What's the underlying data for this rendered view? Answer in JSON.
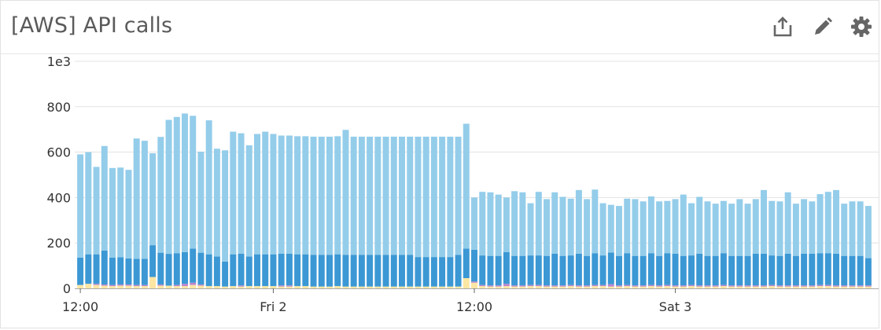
{
  "widget": {
    "title": "[AWS] API calls",
    "actions": [
      {
        "name": "export-icon",
        "label": "Export"
      },
      {
        "name": "edit-icon",
        "label": "Edit"
      },
      {
        "name": "settings-icon",
        "label": "Settings"
      }
    ]
  },
  "colors": {
    "series_light_blue": "#94cdea",
    "series_mid_blue": "#3b98d4",
    "series_yellow": "#fbe6a3",
    "series_purple": "#bd84cf",
    "gridline": "#e3e3e3",
    "axis": "#aaaaaa"
  },
  "chart_data": {
    "type": "bar",
    "stacked": true,
    "y_tick_labels": [
      "0",
      "200",
      "400",
      "600",
      "800",
      "1e3"
    ],
    "ylim": [
      0,
      1000
    ],
    "x_tick_labels": [
      {
        "text": "12:00",
        "bar_index": 0
      },
      {
        "text": "Fri 2",
        "bar_index": 24
      },
      {
        "text": "12:00",
        "bar_index": 49
      },
      {
        "text": "Sat 3",
        "bar_index": 74
      }
    ],
    "grid": true,
    "bar_count": 99,
    "series": [
      {
        "color": "#fbe6a3",
        "values": [
          15,
          20,
          15,
          12,
          10,
          12,
          12,
          10,
          10,
          50,
          12,
          12,
          10,
          10,
          15,
          12,
          10,
          10,
          8,
          10,
          8,
          10,
          10,
          10,
          10,
          8,
          8,
          10,
          10,
          8,
          8,
          8,
          10,
          8,
          8,
          8,
          8,
          8,
          8,
          8,
          8,
          8,
          8,
          8,
          8,
          8,
          8,
          8,
          45,
          25,
          10,
          8,
          8,
          10,
          8,
          8,
          10,
          10,
          8,
          8,
          8,
          10,
          8,
          8,
          10,
          10,
          8,
          8,
          10,
          8,
          8,
          10,
          8,
          10,
          8,
          8,
          10,
          8,
          8,
          8,
          10,
          8,
          8,
          8,
          8,
          8,
          10,
          8,
          8,
          8,
          8,
          8,
          10,
          10,
          8,
          8,
          8,
          8,
          8
        ]
      },
      {
        "color": "#bd84cf",
        "values": [
          0,
          0,
          5,
          5,
          5,
          5,
          5,
          5,
          5,
          0,
          5,
          0,
          5,
          10,
          10,
          5,
          0,
          0,
          0,
          0,
          5,
          0,
          0,
          0,
          0,
          5,
          5,
          0,
          0,
          0,
          0,
          0,
          0,
          0,
          0,
          0,
          0,
          0,
          0,
          0,
          0,
          0,
          0,
          0,
          0,
          0,
          0,
          0,
          0,
          5,
          5,
          5,
          5,
          10,
          5,
          5,
          5,
          5,
          5,
          5,
          5,
          5,
          5,
          5,
          5,
          5,
          10,
          5,
          5,
          5,
          5,
          5,
          5,
          5,
          5,
          5,
          5,
          5,
          5,
          5,
          5,
          5,
          5,
          5,
          5,
          5,
          5,
          5,
          5,
          5,
          5,
          5,
          5,
          5,
          5,
          5,
          5,
          5,
          5
        ]
      },
      {
        "color": "#3b98d4",
        "values": [
          120,
          130,
          130,
          150,
          120,
          120,
          115,
          115,
          115,
          140,
          140,
          140,
          140,
          140,
          150,
          140,
          140,
          130,
          110,
          140,
          140,
          130,
          140,
          140,
          140,
          140,
          140,
          140,
          140,
          140,
          140,
          140,
          140,
          140,
          140,
          140,
          140,
          140,
          140,
          140,
          140,
          140,
          130,
          130,
          130,
          130,
          130,
          140,
          130,
          140,
          130,
          130,
          130,
          140,
          130,
          130,
          130,
          130,
          130,
          140,
          130,
          130,
          140,
          130,
          140,
          130,
          140,
          130,
          140,
          130,
          130,
          140,
          130,
          140,
          140,
          130,
          130,
          140,
          130,
          130,
          140,
          130,
          130,
          130,
          140,
          140,
          130,
          130,
          140,
          130,
          140,
          140,
          140,
          140,
          140,
          130,
          130,
          130,
          120
        ]
      },
      {
        "color": "#94cdea",
        "values": [
          455,
          450,
          385,
          460,
          395,
          395,
          390,
          530,
          520,
          405,
          510,
          590,
          600,
          610,
          585,
          445,
          590,
          475,
          490,
          540,
          530,
          490,
          530,
          540,
          530,
          520,
          520,
          520,
          520,
          520,
          520,
          520,
          520,
          550,
          520,
          520,
          520,
          520,
          520,
          520,
          520,
          520,
          530,
          530,
          530,
          530,
          530,
          520,
          550,
          230,
          280,
          280,
          270,
          240,
          285,
          280,
          230,
          280,
          250,
          270,
          260,
          250,
          280,
          250,
          280,
          230,
          210,
          220,
          240,
          250,
          240,
          250,
          240,
          230,
          240,
          270,
          230,
          250,
          240,
          230,
          230,
          230,
          250,
          230,
          240,
          280,
          240,
          240,
          270,
          230,
          240,
          230,
          260,
          270,
          280,
          230,
          240,
          240,
          230
        ]
      }
    ]
  }
}
